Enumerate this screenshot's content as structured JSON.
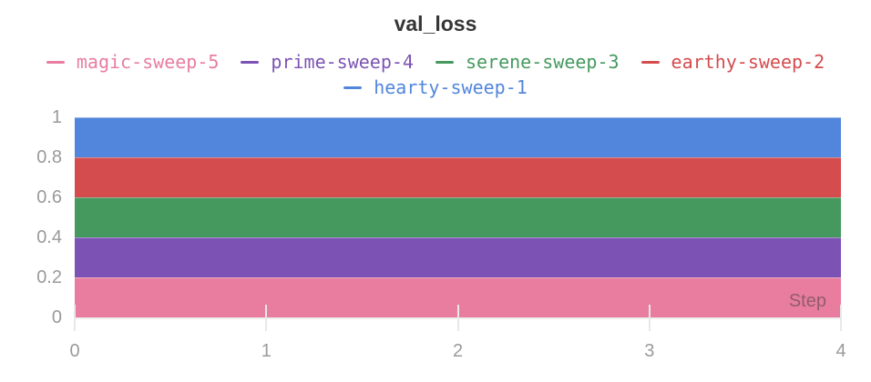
{
  "panel": {
    "title": "val_loss"
  },
  "legend": {
    "items": [
      {
        "label": "magic-sweep-5",
        "color": "#e87da0"
      },
      {
        "label": "prime-sweep-4",
        "color": "#7c53b4"
      },
      {
        "label": "serene-sweep-3",
        "color": "#45995e"
      },
      {
        "label": "earthy-sweep-2",
        "color": "#d54c4e"
      },
      {
        "label": "hearty-sweep-1",
        "color": "#5286dc"
      }
    ]
  },
  "chart_data": {
    "type": "area",
    "title": "val_loss",
    "xlabel": "Step",
    "ylabel": "",
    "x": [
      0,
      1,
      2,
      3,
      4
    ],
    "xlim": [
      0,
      4
    ],
    "ylim": [
      0,
      1
    ],
    "grid": false,
    "legend_position": "top",
    "stacking": "each series is a constant stacked band 0.2 thick spanning steps 0 to 4",
    "series": [
      {
        "name": "magic-sweep-5",
        "color": "#e87da0",
        "band": [
          0.0,
          0.2
        ],
        "values": [
          0.2,
          0.2,
          0.2,
          0.2,
          0.2
        ]
      },
      {
        "name": "prime-sweep-4",
        "color": "#7c53b4",
        "band": [
          0.2,
          0.4
        ],
        "values": [
          0.4,
          0.4,
          0.4,
          0.4,
          0.4
        ]
      },
      {
        "name": "serene-sweep-3",
        "color": "#45995e",
        "band": [
          0.4,
          0.6
        ],
        "values": [
          0.6,
          0.6,
          0.6,
          0.6,
          0.6
        ]
      },
      {
        "name": "earthy-sweep-2",
        "color": "#d54c4e",
        "band": [
          0.6,
          0.8
        ],
        "values": [
          0.8,
          0.8,
          0.8,
          0.8,
          0.8
        ]
      },
      {
        "name": "hearty-sweep-1",
        "color": "#5286dc",
        "band": [
          0.8,
          1.0
        ],
        "values": [
          1.0,
          1.0,
          1.0,
          1.0,
          1.0
        ]
      }
    ],
    "yticks": [
      {
        "v": 0,
        "label": "0"
      },
      {
        "v": 0.2,
        "label": "0.2"
      },
      {
        "v": 0.4,
        "label": "0.4"
      },
      {
        "v": 0.6,
        "label": "0.6"
      },
      {
        "v": 0.8,
        "label": "0.8"
      },
      {
        "v": 1,
        "label": "1"
      }
    ],
    "xticks": [
      {
        "v": 0,
        "label": "0"
      },
      {
        "v": 1,
        "label": "1"
      },
      {
        "v": 2,
        "label": "2"
      },
      {
        "v": 3,
        "label": "3"
      },
      {
        "v": 4,
        "label": "4"
      }
    ]
  }
}
